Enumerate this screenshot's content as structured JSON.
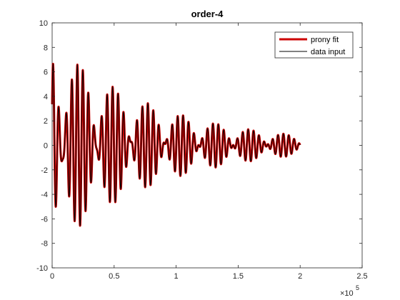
{
  "chart_data": {
    "type": "line",
    "title": "order-4",
    "xlabel": "",
    "ylabel": "",
    "xlim": [
      0,
      2.5
    ],
    "ylim": [
      -10,
      10
    ],
    "x_exponent_base": "×10",
    "x_exponent_power": "5",
    "x_ticks": [
      0,
      0.5,
      1,
      1.5,
      2,
      2.5
    ],
    "x_tick_labels": [
      "0",
      "0.5",
      "1",
      "1.5",
      "2",
      "2.5"
    ],
    "y_ticks": [
      -10,
      -8,
      -6,
      -4,
      -2,
      0,
      2,
      4,
      6,
      8,
      10
    ],
    "y_tick_labels": [
      "-10",
      "-8",
      "-6",
      "-4",
      "-2",
      "0",
      "2",
      "4",
      "6",
      "8",
      "10"
    ],
    "grid": false,
    "legend_placement": "top-right",
    "x_range_data": [
      0,
      2.0
    ],
    "series": [
      {
        "name": "prony fit",
        "color": "#cc0000",
        "modes": [
          {
            "amplitude": 5.0,
            "period": 0.0475,
            "phase": 0.0,
            "decay": 1.3
          },
          {
            "amplitude": 3.6,
            "period": 0.0405,
            "phase": 1.2,
            "decay": 1.05
          }
        ]
      },
      {
        "name": "data input",
        "color": "#000000",
        "modes": [
          {
            "amplitude": 5.0,
            "period": 0.0475,
            "phase": 0.0,
            "decay": 1.3
          },
          {
            "amplitude": 3.6,
            "period": 0.0405,
            "phase": 1.2,
            "decay": 1.05
          }
        ]
      }
    ]
  }
}
